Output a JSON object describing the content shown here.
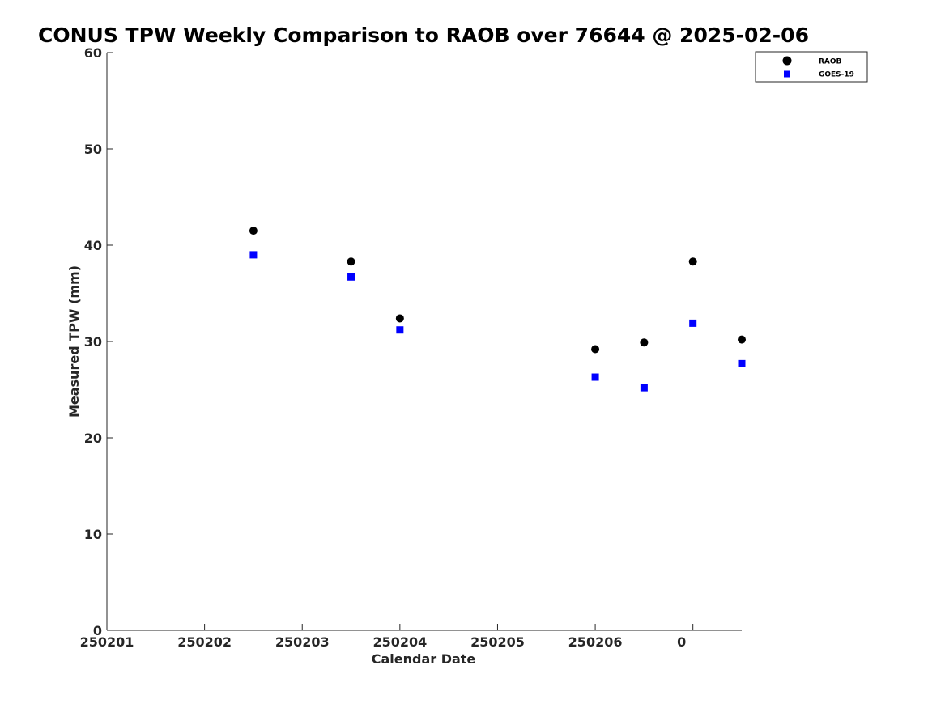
{
  "chart_data": {
    "type": "scatter",
    "title": "CONUS TPW Weekly Comparison to RAOB over 76644 @ 2025-02-06",
    "xlabel": "Calendar Date",
    "ylabel": "Measured TPW (mm)",
    "xlim": [
      0,
      6.5
    ],
    "ylim": [
      0,
      60
    ],
    "x_ticks": [
      0,
      1,
      2,
      3,
      4,
      5,
      6
    ],
    "x_tick_labels": [
      "250201",
      "250202",
      "250203",
      "250204",
      "250205",
      "250206",
      "0"
    ],
    "y_ticks": [
      0,
      10,
      20,
      30,
      40,
      50,
      60
    ],
    "y_tick_labels": [
      "0",
      "10",
      "20",
      "30",
      "40",
      "50",
      "60"
    ],
    "grid": false,
    "legend_position": "top-right",
    "series": [
      {
        "name": "RAOB",
        "marker": "circle",
        "color": "#000000",
        "points": [
          {
            "x": 1.5,
            "y": 41.5
          },
          {
            "x": 2.5,
            "y": 38.3
          },
          {
            "x": 3.0,
            "y": 32.4
          },
          {
            "x": 5.0,
            "y": 29.2
          },
          {
            "x": 5.5,
            "y": 29.9
          },
          {
            "x": 6.0,
            "y": 38.3
          },
          {
            "x": 6.5,
            "y": 30.2
          }
        ]
      },
      {
        "name": "GOES-19",
        "marker": "square",
        "color": "#0000ff",
        "points": [
          {
            "x": 1.5,
            "y": 39.0
          },
          {
            "x": 2.5,
            "y": 36.7
          },
          {
            "x": 3.0,
            "y": 31.2
          },
          {
            "x": 5.0,
            "y": 26.3
          },
          {
            "x": 5.5,
            "y": 25.2
          },
          {
            "x": 6.0,
            "y": 31.9
          },
          {
            "x": 6.5,
            "y": 27.7
          }
        ]
      }
    ]
  }
}
